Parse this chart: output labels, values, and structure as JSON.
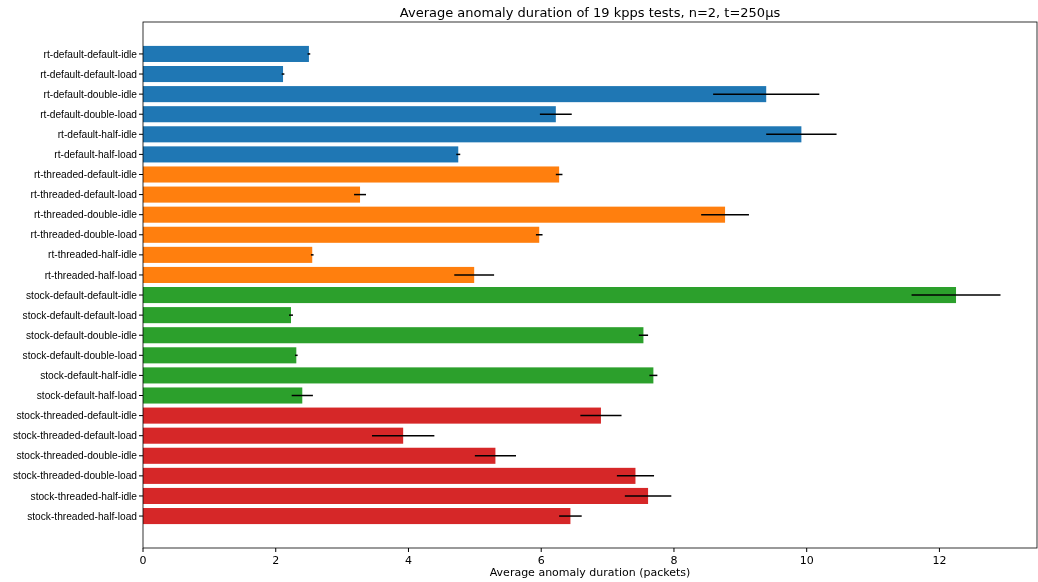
{
  "chart_data": {
    "type": "bar",
    "orientation": "horizontal",
    "title": "Average anomaly duration of 19 kpps tests, n=2, t=250µs",
    "xlabel": "Average anomaly duration (packets)",
    "categories": [
      "rt-default-default-idle",
      "rt-default-default-load",
      "rt-default-double-idle",
      "rt-default-double-load",
      "rt-default-half-idle",
      "rt-default-half-load",
      "rt-threaded-default-idle",
      "rt-threaded-default-load",
      "rt-threaded-double-idle",
      "rt-threaded-double-load",
      "rt-threaded-half-idle",
      "rt-threaded-half-load",
      "stock-default-default-idle",
      "stock-default-default-load",
      "stock-default-double-idle",
      "stock-default-double-load",
      "stock-default-half-idle",
      "stock-default-half-load",
      "stock-threaded-default-idle",
      "stock-threaded-default-load",
      "stock-threaded-double-idle",
      "stock-threaded-double-load",
      "stock-threaded-half-idle",
      "stock-threaded-half-load"
    ],
    "values": [
      2.5,
      2.11,
      9.39,
      6.22,
      9.92,
      4.75,
      6.27,
      3.27,
      8.77,
      5.97,
      2.55,
      4.99,
      12.25,
      2.23,
      7.54,
      2.31,
      7.69,
      2.4,
      6.9,
      3.92,
      5.31,
      7.42,
      7.61,
      6.44
    ],
    "errors": [
      0.02,
      0.02,
      0.8,
      0.24,
      0.53,
      0.03,
      0.05,
      0.09,
      0.36,
      0.05,
      0.02,
      0.3,
      0.67,
      0.03,
      0.07,
      0.02,
      0.06,
      0.16,
      0.31,
      0.47,
      0.31,
      0.28,
      0.35,
      0.17
    ],
    "colors": [
      "#1f77b4",
      "#1f77b4",
      "#1f77b4",
      "#1f77b4",
      "#1f77b4",
      "#1f77b4",
      "#ff7f0e",
      "#ff7f0e",
      "#ff7f0e",
      "#ff7f0e",
      "#ff7f0e",
      "#ff7f0e",
      "#2ca02c",
      "#2ca02c",
      "#2ca02c",
      "#2ca02c",
      "#2ca02c",
      "#2ca02c",
      "#d62728",
      "#d62728",
      "#d62728",
      "#d62728",
      "#d62728",
      "#d62728"
    ],
    "xlim": [
      0,
      13.47
    ],
    "xticks": [
      0,
      2,
      4,
      6,
      8,
      10,
      12
    ],
    "grid": false
  }
}
